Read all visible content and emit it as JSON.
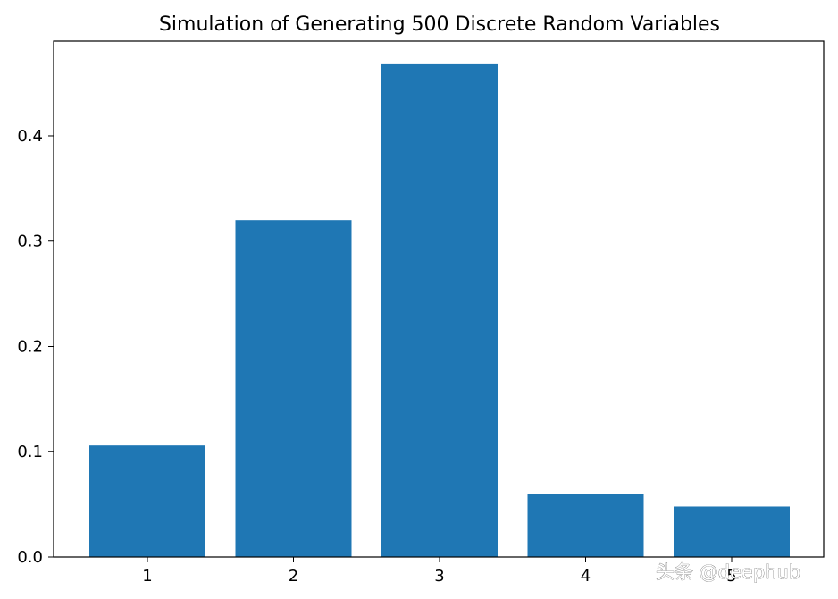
{
  "chart_data": {
    "type": "bar",
    "title": "Simulation of Generating 500 Discrete Random Variables",
    "xlabel": "",
    "ylabel": "",
    "categories": [
      "1",
      "2",
      "3",
      "4",
      "5"
    ],
    "values": [
      0.106,
      0.32,
      0.468,
      0.06,
      0.048
    ],
    "ylim": [
      0,
      0.49
    ],
    "yticks": [
      0.0,
      0.1,
      0.2,
      0.3,
      0.4
    ],
    "ytick_labels": [
      "0.0",
      "0.1",
      "0.2",
      "0.3",
      "0.4"
    ],
    "grid": false,
    "bar_color": "#1f77b4"
  },
  "watermark": "头条 @deephub"
}
